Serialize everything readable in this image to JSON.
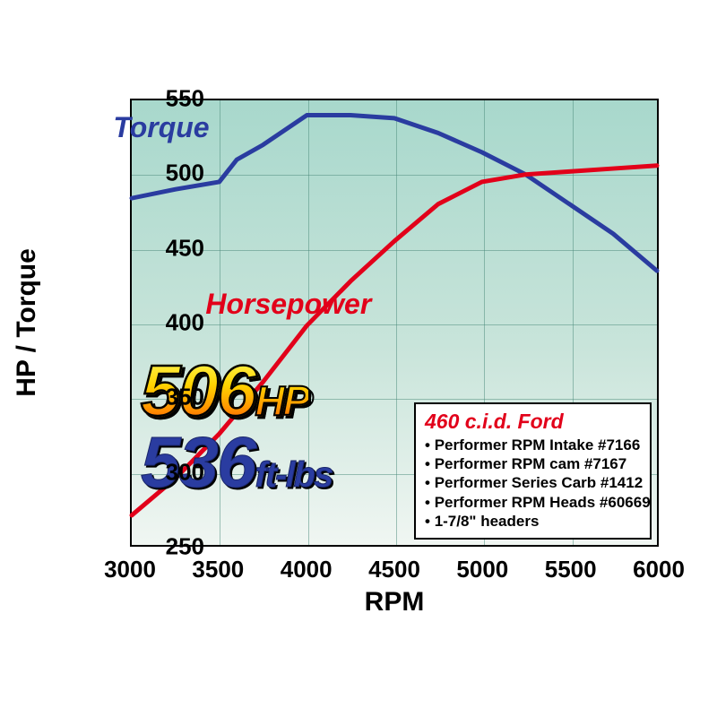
{
  "chart": {
    "type": "line",
    "background_gradient": {
      "top": "#a8d8cc",
      "mid": "#c8e4da",
      "bottom": "#f0f6f2"
    },
    "grid_color": "#4a8a7a",
    "border_color": "#000000",
    "x": {
      "label": "RPM",
      "min": 3000,
      "max": 6000,
      "step": 500,
      "ticks": [
        3000,
        3500,
        4000,
        4500,
        5000,
        5500,
        6000
      ],
      "label_fontsize": 30,
      "tick_fontsize": 26
    },
    "y": {
      "label": "HP / Torque",
      "min": 250,
      "max": 550,
      "step": 50,
      "ticks": [
        250,
        300,
        350,
        400,
        450,
        500,
        550
      ],
      "label_fontsize": 30,
      "tick_fontsize": 26
    },
    "series": {
      "torque": {
        "label": "Torque",
        "color": "#2a3ca0",
        "line_width": 5,
        "label_pos": {
          "rpm": 3200,
          "val": 532
        },
        "points": [
          {
            "x": 3000,
            "y": 484
          },
          {
            "x": 3250,
            "y": 490
          },
          {
            "x": 3500,
            "y": 495
          },
          {
            "x": 3600,
            "y": 510
          },
          {
            "x": 3750,
            "y": 520
          },
          {
            "x": 4000,
            "y": 540
          },
          {
            "x": 4250,
            "y": 540
          },
          {
            "x": 4500,
            "y": 538
          },
          {
            "x": 4750,
            "y": 528
          },
          {
            "x": 5000,
            "y": 515
          },
          {
            "x": 5250,
            "y": 500
          },
          {
            "x": 5500,
            "y": 480
          },
          {
            "x": 5750,
            "y": 460
          },
          {
            "x": 6000,
            "y": 435
          }
        ]
      },
      "horsepower": {
        "label": "Horsepower",
        "color": "#e2001a",
        "line_width": 5,
        "label_pos": {
          "rpm": 3800,
          "val": 415
        },
        "points": [
          {
            "x": 3000,
            "y": 270
          },
          {
            "x": 3250,
            "y": 295
          },
          {
            "x": 3500,
            "y": 325
          },
          {
            "x": 3750,
            "y": 360
          },
          {
            "x": 4000,
            "y": 398
          },
          {
            "x": 4250,
            "y": 428
          },
          {
            "x": 4500,
            "y": 455
          },
          {
            "x": 4750,
            "y": 480
          },
          {
            "x": 5000,
            "y": 495
          },
          {
            "x": 5250,
            "y": 500
          },
          {
            "x": 5500,
            "y": 502
          },
          {
            "x": 5750,
            "y": 504
          },
          {
            "x": 6000,
            "y": 506
          }
        ]
      }
    }
  },
  "callouts": {
    "hp": {
      "value": "506",
      "unit": "HP",
      "color_gradient": [
        "#fff24a",
        "#ff6a00"
      ],
      "stroke": "#000000"
    },
    "torque": {
      "value": "536",
      "unit": "ft-lbs",
      "color": "#2a3ca0"
    }
  },
  "info_box": {
    "title": "460 c.i.d. Ford",
    "title_color": "#e2001a",
    "items": [
      "Performer RPM Intake #7166",
      "Performer RPM cam #7167",
      "Performer Series Carb #1412",
      "Performer RPM Heads #60669",
      "1-7/8\" headers"
    ]
  }
}
